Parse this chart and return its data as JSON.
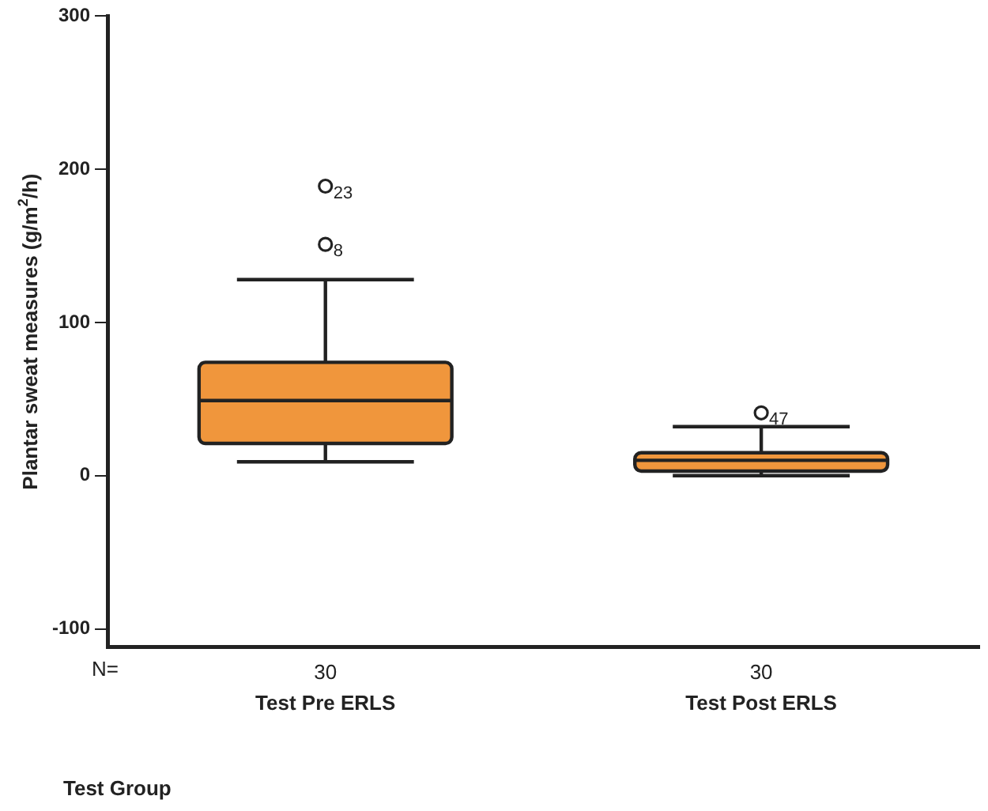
{
  "chart_data": {
    "type": "box",
    "ylabel": "Plantar sweat measures (g/m$^{2}$/h)",
    "xlabel": "Test Group",
    "categories": [
      "Test Pre ERLS",
      "Test Post ERLS"
    ],
    "color": "#f0963c",
    "boxes": [
      {
        "low": 9,
        "q1": 21,
        "median": 49,
        "q3": 74,
        "high": 128,
        "outliers": [
          151,
          189
        ]
      },
      {
        "low": 0,
        "q1": 3,
        "median": 10,
        "q3": 15,
        "high": 32,
        "outliers": [
          41
        ]
      }
    ],
    "annotations": [
      "N=",
      "30",
      "30",
      "8",
      "23",
      "47"
    ],
    "ylim": [
      -112,
      300
    ],
    "yticks": [
      -100,
      0,
      100,
      200,
      300
    ],
    "grid": false,
    "legend": false
  }
}
